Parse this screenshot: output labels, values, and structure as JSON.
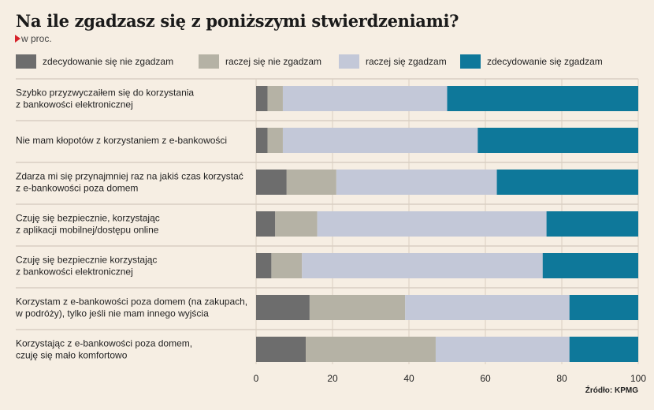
{
  "header": {
    "title": "Na ile zgadzasz się z poniższymi stwierdzeniami?",
    "subtitle": "w proc."
  },
  "source": "Źródło: KPMG",
  "colors": {
    "background": "#f6eee3",
    "gridline": "#d9cfc2",
    "divider": "#c9bfb3",
    "accent_triangle": "#d6222a"
  },
  "chart_data": {
    "type": "bar",
    "orientation": "horizontal",
    "stacked": true,
    "xlim": [
      0,
      100
    ],
    "xticks": [
      0,
      20,
      40,
      60,
      80,
      100
    ],
    "grid": true,
    "legend_position": "top",
    "categories": [
      [
        "Szybko przyzwyczaiłem się do korzystania",
        "z bankowości elektronicznej"
      ],
      [
        "Nie mam kłopotów z korzystaniem z e-bankowości"
      ],
      [
        "Zdarza mi się przynajmniej raz na jakiś czas korzystać",
        "z e-bankowości poza domem"
      ],
      [
        "Czuję się bezpiecznie, korzystając",
        "z aplikacji mobilnej/dostępu online"
      ],
      [
        "Czuję się bezpiecznie korzystając",
        "z bankowości elektronicznej"
      ],
      [
        "Korzystam z e-bankowości poza domem (na zakupach,",
        "w podróży), tylko jeśli nie mam innego wyjścia"
      ],
      [
        "Korzystając z e-bankowości poza domem,",
        "czuję się mało komfortowo"
      ]
    ],
    "series": [
      {
        "name": "zdecydowanie się nie zgadzam",
        "color": "#6d6d6d",
        "values": [
          3,
          3,
          8,
          5,
          4,
          14,
          13
        ]
      },
      {
        "name": "raczej się nie zgadzam",
        "color": "#b5b2a5",
        "values": [
          4,
          4,
          13,
          11,
          8,
          25,
          34
        ]
      },
      {
        "name": "raczej się zgadzam",
        "color": "#c3c8d8",
        "values": [
          43,
          51,
          42,
          60,
          63,
          43,
          35
        ]
      },
      {
        "name": "zdecydowanie się zgadzam",
        "color": "#0e789a",
        "values": [
          50,
          42,
          37,
          24,
          25,
          18,
          18
        ]
      }
    ]
  }
}
